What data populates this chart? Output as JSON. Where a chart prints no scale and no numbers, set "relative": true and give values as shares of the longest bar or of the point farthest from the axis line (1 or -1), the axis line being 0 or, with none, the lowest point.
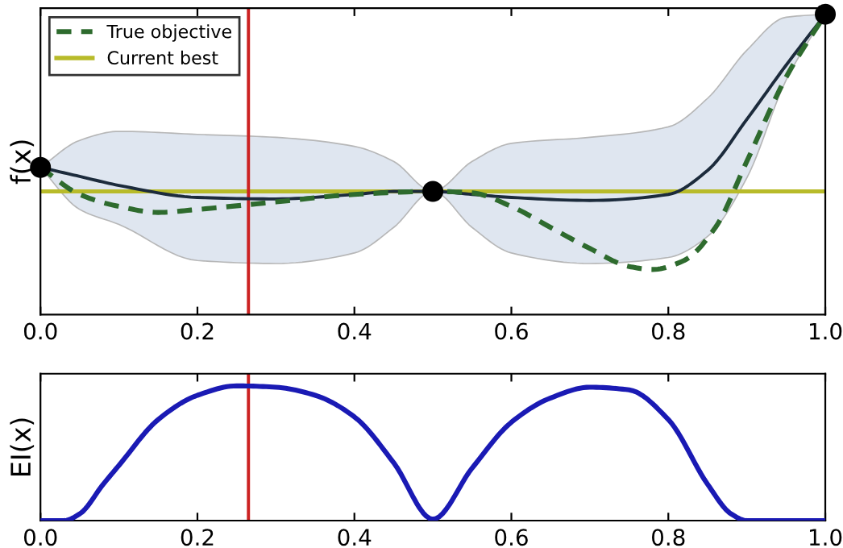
{
  "chart_data": [
    {
      "type": "line",
      "ylabel": "f(x)",
      "relative": true,
      "xlim": [
        0.0,
        1.0
      ],
      "xticks": [
        {
          "value": 0,
          "label": "0.0"
        },
        {
          "value": 0.2,
          "label": "0.2"
        },
        {
          "value": 0.4,
          "label": "0.4"
        },
        {
          "value": 0.6,
          "label": "0.6"
        },
        {
          "value": 0.8,
          "label": "0.8"
        },
        {
          "value": 1,
          "label": "1.0"
        }
      ],
      "tick_labels": "x",
      "grid": false,
      "legend": "top left",
      "series": [
        {
          "color": "#1c2b3c",
          "x": [
            0,
            0.05,
            0.1,
            0.2,
            0.3,
            0.4,
            0.45,
            0.5,
            0.55,
            0.6,
            0.7,
            0.8,
            0.85,
            0.9,
            0.95,
            1.0
          ],
          "values": [
            0.49,
            0.46,
            0.43,
            0.39,
            0.385,
            0.4,
            0.41,
            0.41,
            0.4,
            0.39,
            0.38,
            0.4,
            0.48,
            0.65,
            0.83,
            1.0
          ],
          "lower": [
            0.49,
            0.35,
            0.3,
            0.18,
            0.17,
            0.205,
            0.29,
            0.41,
            0.29,
            0.205,
            0.17,
            0.19,
            0.26,
            0.455,
            0.78,
            1.0
          ],
          "upper": [
            0.49,
            0.58,
            0.61,
            0.6,
            0.59,
            0.56,
            0.51,
            0.41,
            0.51,
            0.57,
            0.59,
            0.625,
            0.72,
            0.88,
            0.99,
            1.0
          ]
        },
        {
          "name": "True objective",
          "color": "#2e6b2e",
          "line_style": "dashed",
          "x": [
            0,
            0.05,
            0.1,
            0.15,
            0.2,
            0.3,
            0.4,
            0.5,
            0.55,
            0.6,
            0.65,
            0.7,
            0.75,
            0.78,
            0.82,
            0.86,
            0.9,
            0.95,
            1.0
          ],
          "values": [
            0.49,
            0.4,
            0.36,
            0.34,
            0.35,
            0.375,
            0.4,
            0.41,
            0.405,
            0.36,
            0.29,
            0.22,
            0.16,
            0.15,
            0.18,
            0.29,
            0.51,
            0.79,
            1.0
          ]
        },
        {
          "type": "scatter",
          "color": "#000000",
          "marker": "circle",
          "x": [
            0,
            0.5,
            1.0
          ],
          "values": [
            0.49,
            0.41,
            1.0
          ]
        }
      ],
      "ref_lines": [
        {
          "axis": "y",
          "value": 0.41,
          "label": "Current best",
          "color": "#b8bb2a"
        },
        {
          "axis": "x",
          "value": 0.265,
          "color": "#cc2222"
        }
      ]
    },
    {
      "type": "line",
      "ylabel": "EI(x)",
      "relative": true,
      "xlim": [
        0.0,
        1.0
      ],
      "xticks": [
        {
          "value": 0,
          "label": "0.0"
        },
        {
          "value": 0.2,
          "label": "0.2"
        },
        {
          "value": 0.4,
          "label": "0.4"
        },
        {
          "value": 0.6,
          "label": "0.6"
        },
        {
          "value": 0.8,
          "label": "0.8"
        },
        {
          "value": 1,
          "label": "1.0"
        }
      ],
      "tick_labels": "x",
      "grid": false,
      "series": [
        {
          "color": "#1a1ab4",
          "x": [
            0,
            0.03,
            0.05,
            0.08,
            0.1,
            0.15,
            0.2,
            0.25,
            0.3,
            0.35,
            0.4,
            0.45,
            0.5,
            0.55,
            0.6,
            0.65,
            0.7,
            0.75,
            0.8,
            0.85,
            0.88,
            0.9,
            1.0
          ],
          "values": [
            0,
            0,
            0.05,
            0.27,
            0.41,
            0.75,
            0.93,
            1.0,
            0.99,
            0.93,
            0.77,
            0.43,
            0.01,
            0.39,
            0.73,
            0.91,
            0.99,
            0.97,
            0.75,
            0.27,
            0.05,
            0,
            0
          ]
        }
      ],
      "ref_lines": [
        {
          "axis": "x",
          "value": 0.265,
          "color": "#cc2222"
        }
      ]
    }
  ]
}
